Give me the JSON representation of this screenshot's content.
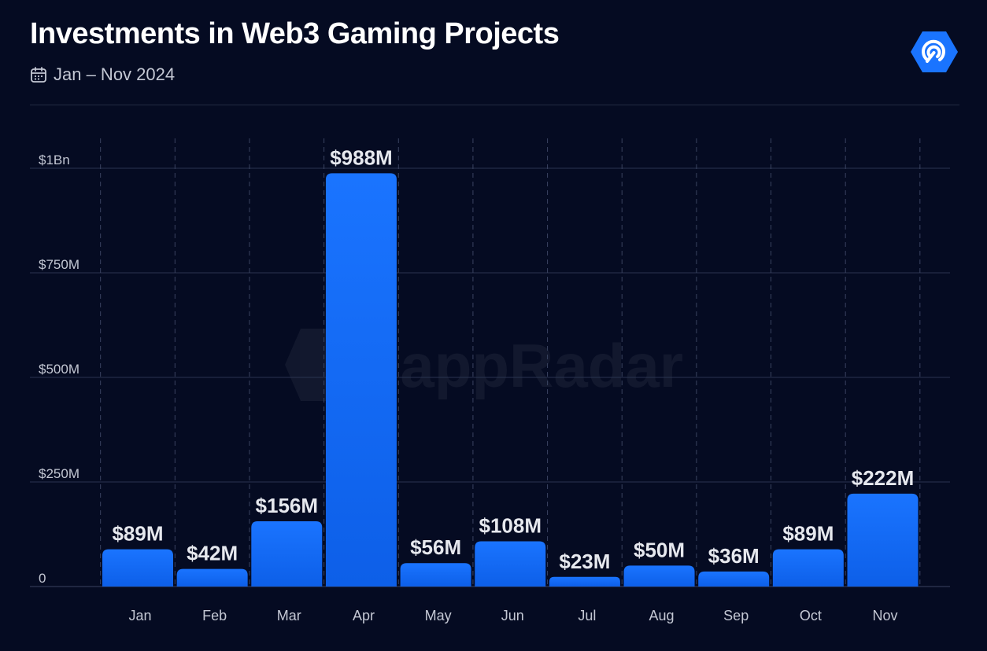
{
  "header": {
    "title": "Investments in Web3 Gaming Projects",
    "date_range": "Jan – Nov 2024"
  },
  "icons": {
    "calendar": "calendar-icon",
    "brand_logo": "dappradar-logo-icon"
  },
  "watermark": {
    "text": "DappRadar"
  },
  "colors": {
    "background": "#050b22",
    "bar_top": "#1a74ff",
    "bar_bottom": "#0d5fe8",
    "label": "#e6e8ee",
    "axis_text": "#c4c8d4",
    "grid": "#2a3350",
    "brand": "#1a74ff"
  },
  "chart_data": {
    "type": "bar",
    "categories": [
      "Jan",
      "Feb",
      "Mar",
      "Apr",
      "May",
      "Jun",
      "Jul",
      "Aug",
      "Sep",
      "Oct",
      "Nov"
    ],
    "values": [
      89,
      42,
      156,
      988,
      56,
      108,
      23,
      50,
      36,
      89,
      222
    ],
    "value_unit": "USD millions",
    "data_labels": [
      "$89M",
      "$42M",
      "$156M",
      "$988M",
      "$56M",
      "$108M",
      "$23M",
      "$50M",
      "$36M",
      "$89M",
      "$222M"
    ],
    "y_ticks": [
      0,
      250,
      500,
      750,
      1000
    ],
    "y_tick_labels": [
      "0",
      "$250M",
      "$500M",
      "$750M",
      "$1Bn"
    ],
    "ylim": [
      0,
      1000
    ],
    "grid": true,
    "legend": "none"
  }
}
